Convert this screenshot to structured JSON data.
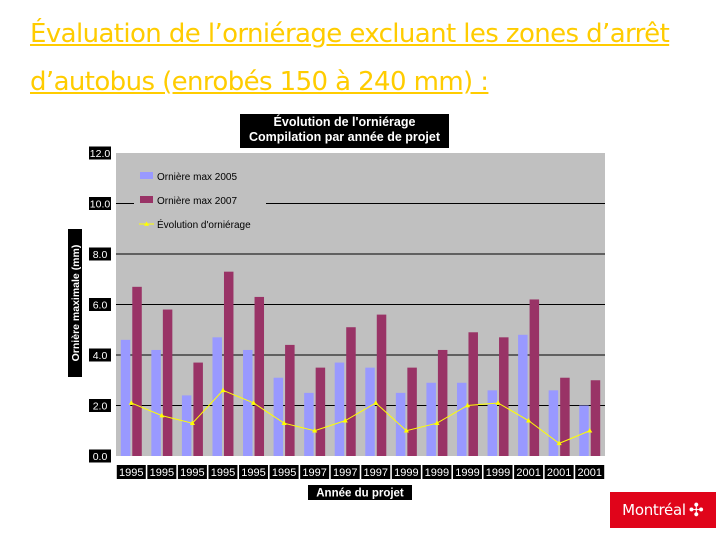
{
  "slide": {
    "title": "Évaluation de l’orniérage excluant les zones d’arrêt d’autobus (enrobés 150 à 240 mm) :"
  },
  "logo": {
    "text": "Montréal",
    "mark": "✣",
    "color": "#e0041a"
  },
  "chart_data": {
    "type": "bar",
    "title_lines": [
      "Évolution de l'orniérage",
      "Compilation par année de projet"
    ],
    "xlabel": "Année du projet",
    "ylabel": "Ornière maximale (mm)",
    "ylim": [
      0,
      12
    ],
    "yticks": [
      "0.0",
      "2.0",
      "4.0",
      "6.0",
      "8.0",
      "10.0",
      "12.0"
    ],
    "grid": true,
    "legend_position": "top-left",
    "categories": [
      "1995",
      "1995",
      "1995",
      "1995",
      "1995",
      "1995",
      "1997",
      "1997",
      "1997",
      "1999",
      "1999",
      "1999",
      "1999",
      "2001",
      "2001",
      "2001"
    ],
    "series": [
      {
        "name": "Ornière max 2005",
        "kind": "bar",
        "color": "#9999ff",
        "values": [
          4.6,
          4.2,
          2.4,
          4.7,
          4.2,
          3.1,
          2.5,
          3.7,
          3.5,
          2.5,
          2.9,
          2.9,
          2.6,
          4.8,
          2.6,
          2.0
        ]
      },
      {
        "name": "Ornière max 2007",
        "kind": "bar",
        "color": "#993366",
        "values": [
          6.7,
          5.8,
          3.7,
          7.3,
          6.3,
          4.4,
          3.5,
          5.1,
          5.6,
          3.5,
          4.2,
          4.9,
          4.7,
          6.2,
          3.1,
          3.0
        ]
      },
      {
        "name": "Évolution d'orniérage",
        "kind": "line",
        "color": "#ffff00",
        "values": [
          2.1,
          1.6,
          1.3,
          2.6,
          2.1,
          1.3,
          1.0,
          1.4,
          2.1,
          1.0,
          1.3,
          2.0,
          2.1,
          1.4,
          0.5,
          1.0
        ]
      }
    ]
  }
}
